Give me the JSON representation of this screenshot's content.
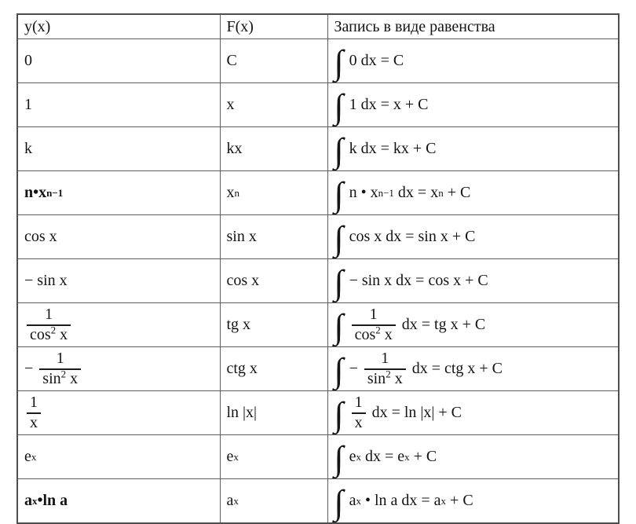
{
  "colors": {
    "border": "#5f5f5f",
    "outer_border": "#4e4e4e",
    "text": "#141414",
    "background": "#ffffff"
  },
  "table": {
    "headers": [
      "y(x)",
      "F(x)",
      "Запись в виде равенства"
    ],
    "rows": [
      {
        "y": [
          {
            "t": "text",
            "v": "0"
          }
        ],
        "F": [
          {
            "t": "text",
            "v": "C"
          }
        ],
        "eq": [
          {
            "t": "int"
          },
          {
            "t": "text",
            "v": "0 dx = C"
          }
        ]
      },
      {
        "y": [
          {
            "t": "text",
            "v": "1"
          }
        ],
        "F": [
          {
            "t": "text",
            "v": "x"
          }
        ],
        "eq": [
          {
            "t": "int"
          },
          {
            "t": "text",
            "v": "1 dx = x + C"
          }
        ]
      },
      {
        "y": [
          {
            "t": "text",
            "v": "k"
          }
        ],
        "F": [
          {
            "t": "text",
            "v": "kx"
          }
        ],
        "eq": [
          {
            "t": "int"
          },
          {
            "t": "text",
            "v": "k dx = kx + C"
          }
        ]
      },
      {
        "y": [
          {
            "t": "text",
            "v": "n•x",
            "b": true
          },
          {
            "t": "sup",
            "v": "n−1",
            "b": true
          }
        ],
        "F": [
          {
            "t": "text",
            "v": "x"
          },
          {
            "t": "sup",
            "v": "n"
          }
        ],
        "eq": [
          {
            "t": "int"
          },
          {
            "t": "text",
            "v": "n • x"
          },
          {
            "t": "sup",
            "v": "n−1"
          },
          {
            "t": "text",
            "v": " dx = x"
          },
          {
            "t": "sup",
            "v": "n"
          },
          {
            "t": "text",
            "v": " + C"
          }
        ]
      },
      {
        "y": [
          {
            "t": "text",
            "v": "cos x"
          }
        ],
        "F": [
          {
            "t": "text",
            "v": "sin x"
          }
        ],
        "eq": [
          {
            "t": "int"
          },
          {
            "t": "text",
            "v": "cos x dx = sin x + C"
          }
        ]
      },
      {
        "y": [
          {
            "t": "text",
            "v": "− sin x"
          }
        ],
        "F": [
          {
            "t": "text",
            "v": "cos x"
          }
        ],
        "eq": [
          {
            "t": "int"
          },
          {
            "t": "text",
            "v": "− sin x dx = cos x + C"
          }
        ]
      },
      {
        "y": [
          {
            "t": "frac",
            "num": [
              {
                "t": "text",
                "v": "1"
              }
            ],
            "den": [
              {
                "t": "text",
                "v": "cos"
              },
              {
                "t": "sup",
                "v": "2"
              },
              {
                "t": "text",
                "v": " x"
              }
            ]
          }
        ],
        "F": [
          {
            "t": "text",
            "v": "tg x"
          }
        ],
        "eq": [
          {
            "t": "int"
          },
          {
            "t": "frac",
            "num": [
              {
                "t": "text",
                "v": "1"
              }
            ],
            "den": [
              {
                "t": "text",
                "v": "cos"
              },
              {
                "t": "sup",
                "v": "2"
              },
              {
                "t": "text",
                "v": " x"
              }
            ]
          },
          {
            "t": "text",
            "v": " dx = tg x + C"
          }
        ]
      },
      {
        "y": [
          {
            "t": "text",
            "v": "− "
          },
          {
            "t": "frac",
            "num": [
              {
                "t": "text",
                "v": "1"
              }
            ],
            "den": [
              {
                "t": "text",
                "v": "sin"
              },
              {
                "t": "sup",
                "v": "2"
              },
              {
                "t": "text",
                "v": " x"
              }
            ]
          }
        ],
        "F": [
          {
            "t": "text",
            "v": "ctg x"
          }
        ],
        "eq": [
          {
            "t": "int"
          },
          {
            "t": "text",
            "v": "− "
          },
          {
            "t": "frac",
            "num": [
              {
                "t": "text",
                "v": "1"
              }
            ],
            "den": [
              {
                "t": "text",
                "v": "sin"
              },
              {
                "t": "sup",
                "v": "2"
              },
              {
                "t": "text",
                "v": " x"
              }
            ]
          },
          {
            "t": "text",
            "v": " dx = ctg x + C"
          }
        ]
      },
      {
        "y": [
          {
            "t": "frac",
            "num": [
              {
                "t": "text",
                "v": "1"
              }
            ],
            "den": [
              {
                "t": "text",
                "v": "x"
              }
            ]
          }
        ],
        "F": [
          {
            "t": "text",
            "v": "ln |x|"
          }
        ],
        "eq": [
          {
            "t": "int"
          },
          {
            "t": "frac",
            "num": [
              {
                "t": "text",
                "v": "1"
              }
            ],
            "den": [
              {
                "t": "text",
                "v": "x"
              }
            ]
          },
          {
            "t": "text",
            "v": " dx = ln |x| + C"
          }
        ]
      },
      {
        "y": [
          {
            "t": "text",
            "v": "e"
          },
          {
            "t": "sup",
            "v": "x"
          }
        ],
        "F": [
          {
            "t": "text",
            "v": "e"
          },
          {
            "t": "sup",
            "v": "x"
          }
        ],
        "eq": [
          {
            "t": "int"
          },
          {
            "t": "text",
            "v": "e"
          },
          {
            "t": "sup",
            "v": "x"
          },
          {
            "t": "text",
            "v": " dx = e"
          },
          {
            "t": "sup",
            "v": "x"
          },
          {
            "t": "text",
            "v": " + C"
          }
        ]
      },
      {
        "y": [
          {
            "t": "text",
            "v": "a",
            "b": true
          },
          {
            "t": "sup",
            "v": "x",
            "b": true
          },
          {
            "t": "text",
            "v": "•ln a",
            "b": true
          }
        ],
        "F": [
          {
            "t": "text",
            "v": "a"
          },
          {
            "t": "sup",
            "v": "x"
          }
        ],
        "eq": [
          {
            "t": "int"
          },
          {
            "t": "text",
            "v": "a"
          },
          {
            "t": "sup",
            "v": "x"
          },
          {
            "t": "text",
            "v": " • ln a dx = a"
          },
          {
            "t": "sup",
            "v": "x"
          },
          {
            "t": "text",
            "v": " + C"
          }
        ]
      }
    ]
  }
}
